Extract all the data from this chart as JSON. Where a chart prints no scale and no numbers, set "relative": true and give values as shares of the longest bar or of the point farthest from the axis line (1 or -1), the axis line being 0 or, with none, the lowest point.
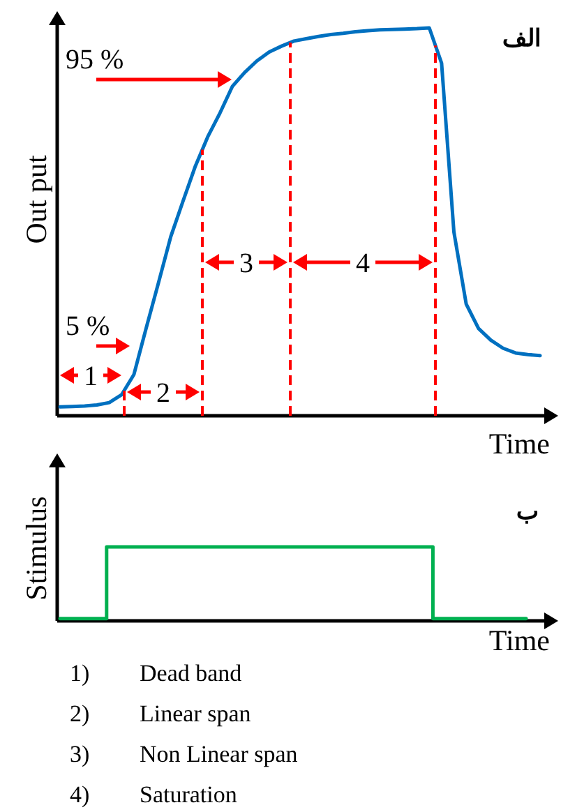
{
  "chart_data": [
    {
      "type": "line",
      "title": "الف",
      "xlabel": "Time",
      "ylabel": "Out put",
      "relative": true,
      "categories": [
        null,
        null,
        null,
        null,
        null,
        null,
        null,
        null,
        null,
        null,
        null,
        null,
        null,
        null,
        null,
        null,
        null,
        null,
        null,
        null,
        null,
        null,
        null,
        null,
        null,
        null,
        null,
        null,
        null,
        null,
        null,
        null,
        null,
        null,
        null,
        null,
        null,
        null,
        null,
        null
      ],
      "series": [
        {
          "color": "#0070c0",
          "values": [
            0.023,
            0.024,
            0.025,
            0.028,
            0.034,
            0.054,
            0.106,
            0.226,
            0.343,
            0.462,
            0.554,
            0.644,
            0.719,
            0.781,
            0.849,
            0.885,
            0.915,
            0.938,
            0.953,
            0.966,
            0.972,
            0.978,
            0.983,
            0.986,
            0.99,
            0.993,
            0.995,
            0.996,
            0.997,
            0.998,
            1,
            0.909,
            0.474,
            0.288,
            0.225,
            0.195,
            0.174,
            0.162,
            0.158,
            0.155
          ]
        }
      ],
      "annotations": [
        "5 %",
        "95 %",
        "1",
        "2",
        "3",
        "4"
      ]
    },
    {
      "type": "step",
      "title": "ب",
      "xlabel": "Time",
      "ylabel": "Stimulus",
      "relative": true,
      "categories": [
        null,
        null,
        null,
        null,
        null,
        null,
        null,
        null,
        null,
        null,
        null
      ],
      "series": [
        {
          "color": "#00b050",
          "values": [
            0.03,
            1,
            1,
            1,
            1,
            1,
            1,
            1,
            0.03,
            0.03,
            0.03
          ]
        }
      ],
      "annotations": [
        "1) Dead band",
        "2) Linear span",
        "3) Non Linear span",
        "4) Saturation"
      ]
    }
  ]
}
